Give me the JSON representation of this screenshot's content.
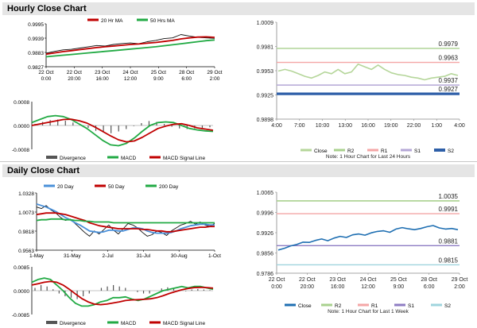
{
  "sections": {
    "hourly_title": "Hourly Close Chart",
    "daily_title": "Daily Close Chart"
  },
  "colors": {
    "ma_short": "#c00000",
    "ma_long": "#22aa44",
    "price": "#111111",
    "divergence": "#555555",
    "macd": "#22aa44",
    "signal": "#c00000",
    "close_hourly": "#b5d69a",
    "close_daily": "#1f6fb2",
    "r2": "#a9d18e",
    "r1": "#f4a6a6",
    "s1_hourly": "#b4a7d6",
    "s2_hourly": "#2e5fa8",
    "s1_daily": "#8e7cc3",
    "s2_daily": "#9fd4de"
  },
  "chart_data": [
    {
      "id": "hourly_price",
      "type": "line",
      "legend": [
        "20 Hr MA",
        "50 Hrs MA"
      ],
      "y_ticks": [
        "0.9995",
        "0.9939",
        "0.9883",
        "0.9827"
      ],
      "ylim": [
        0.9827,
        0.9995
      ],
      "x_ticks": [
        [
          "22 Oct",
          "0:00"
        ],
        [
          "22 Oct",
          "20:00"
        ],
        [
          "23 Oct",
          "16:00"
        ],
        [
          "24 Oct",
          "12:00"
        ],
        [
          "25 Oct",
          "9:00"
        ],
        [
          "28 Oct",
          "6:00"
        ],
        [
          "29 Oct",
          "2:00"
        ]
      ],
      "series": [
        {
          "name": "price",
          "values": [
            0.988,
            0.9887,
            0.9893,
            0.9895,
            0.99,
            0.9905,
            0.991,
            0.9908,
            0.9914,
            0.9918,
            0.992,
            0.9917,
            0.9925,
            0.993,
            0.9937,
            0.994,
            0.9953,
            0.9947,
            0.9942,
            0.994,
            0.9938
          ]
        },
        {
          "name": "20 Hr MA",
          "values": [
            0.9876,
            0.9881,
            0.9886,
            0.989,
            0.9894,
            0.9898,
            0.9902,
            0.9905,
            0.9908,
            0.9911,
            0.9914,
            0.9916,
            0.9919,
            0.9922,
            0.9926,
            0.993,
            0.9936,
            0.994,
            0.9943,
            0.9944,
            0.9942
          ]
        },
        {
          "name": "50 Hrs MA",
          "values": [
            0.9866,
            0.9869,
            0.9872,
            0.9875,
            0.9878,
            0.9881,
            0.9884,
            0.9887,
            0.989,
            0.9893,
            0.9896,
            0.9899,
            0.9902,
            0.9905,
            0.9909,
            0.9913,
            0.9917,
            0.9921,
            0.9925,
            0.9929,
            0.9932
          ]
        }
      ]
    },
    {
      "id": "hourly_macd",
      "type": "line",
      "legend": [
        "Divergence",
        "MACD",
        "MACD Signal Line"
      ],
      "y_ticks": [
        "0.0008",
        "0.0000",
        "-0.0008"
      ],
      "ylim": [
        -0.0008,
        0.0008
      ],
      "series": [
        {
          "name": "Divergence",
          "values": [
            5e-05,
            0.00012,
            0.00018,
            0.0002,
            0.00016,
            0.0001,
            2e-05,
            -8e-05,
            -0.00018,
            -0.00024,
            -0.00026,
            -0.0002,
            -0.00012,
            -2e-05,
            8e-05,
            0.00015,
            0.00012,
            5e-05,
            -4e-05,
            -0.0001,
            -0.00012,
            -0.0001,
            -8e-05,
            -6e-05
          ]
        },
        {
          "name": "MACD",
          "values": [
            0.0001,
            0.0002,
            0.0003,
            0.00033,
            0.0003,
            0.0002,
            5e-05,
            -0.0001,
            -0.0003,
            -0.0005,
            -0.00065,
            -0.00068,
            -0.0006,
            -0.00042,
            -0.0002,
            0.0,
            0.0001,
            0.00012,
            0.0001,
            0.0,
            -0.0001,
            -0.00015,
            -0.00018,
            -0.0002
          ]
        },
        {
          "name": "MACD Signal Line",
          "values": [
            0.0,
            5e-05,
            0.0001,
            0.00015,
            0.0002,
            0.00021,
            0.00016,
            8e-05,
            -5e-05,
            -0.0002,
            -0.00035,
            -0.00048,
            -0.00055,
            -0.00052,
            -0.0004,
            -0.00025,
            -0.0001,
            -2e-05,
            4e-05,
            6e-05,
            0.0,
            -8e-05,
            -0.00012,
            -0.00016
          ]
        }
      ]
    },
    {
      "id": "hourly_levels",
      "type": "line",
      "y_ticks": [
        "1.0009",
        "0.9981",
        "0.9953",
        "0.9925",
        "0.9898"
      ],
      "ylim": [
        0.9898,
        1.0009
      ],
      "x_ticks": [
        "4:00",
        "7:00",
        "10:00",
        "13:00",
        "16:00",
        "19:00",
        "22:00",
        "1:00",
        "4:00"
      ],
      "levels": [
        {
          "name": "R2",
          "value": 0.9979,
          "label": "0.9979"
        },
        {
          "name": "R1",
          "value": 0.9963,
          "label": "0.9963"
        },
        {
          "name": "S1",
          "value": 0.9937,
          "label": "0.9937"
        },
        {
          "name": "S2",
          "value": 0.9927,
          "label": "0.9927"
        }
      ],
      "series": [
        {
          "name": "Close",
          "values": [
            0.9953,
            0.9955,
            0.9953,
            0.995,
            0.9947,
            0.9945,
            0.9948,
            0.9952,
            0.995,
            0.9955,
            0.995,
            0.9952,
            0.9961,
            0.9958,
            0.9955,
            0.996,
            0.9955,
            0.9951,
            0.9949,
            0.9948,
            0.9946,
            0.9945,
            0.9943,
            0.9945,
            0.9946,
            0.9947,
            0.995,
            0.9948
          ]
        }
      ],
      "legend": [
        "Close",
        "R2",
        "R1",
        "S1",
        "S2"
      ],
      "note": "Note: 1 Hour Chart for Last 24 Hours"
    },
    {
      "id": "daily_price",
      "type": "line",
      "legend": [
        "20 Day",
        "50 Day",
        "200 Day"
      ],
      "y_ticks": [
        "1.0328",
        "1.0073",
        "0.9818",
        "0.9563"
      ],
      "ylim": [
        0.9563,
        1.0328
      ],
      "x_ticks": [
        "1-May",
        "31-May",
        "2-Jul",
        "31-Jul",
        "30-Aug",
        "1-Oct"
      ],
      "series": [
        {
          "name": "price",
          "values": [
            1.014,
            1.012,
            1.016,
            1.01,
            1.006,
            1.0,
            0.996,
            0.998,
            0.992,
            0.986,
            0.98,
            0.975,
            0.982,
            0.978,
            0.984,
            0.99,
            0.983,
            0.978,
            0.985,
            0.992,
            0.99,
            0.986,
            0.98,
            0.975,
            0.977,
            0.982,
            0.98,
            0.976,
            0.982,
            0.986,
            0.99,
            0.992,
            0.995,
            0.991,
            0.994,
            0.99,
            0.988,
            0.992
          ]
        },
        {
          "name": "20 Day",
          "values": [
            1.018,
            1.016,
            1.014,
            1.011,
            1.008,
            1.004,
            1.0,
            0.997,
            0.993,
            0.99,
            0.986,
            0.982,
            0.981,
            0.98,
            0.981,
            0.983,
            0.983,
            0.982,
            0.982,
            0.984,
            0.986,
            0.986,
            0.985,
            0.982,
            0.98,
            0.979,
            0.979,
            0.979,
            0.98,
            0.982,
            0.985,
            0.987,
            0.989,
            0.99,
            0.991,
            0.991,
            0.99,
            0.99
          ]
        },
        {
          "name": "50 Day",
          "values": [
            1.004,
            1.005,
            1.006,
            1.006,
            1.006,
            1.005,
            1.004,
            1.002,
            1.0,
            0.998,
            0.996,
            0.993,
            0.991,
            0.989,
            0.988,
            0.987,
            0.986,
            0.985,
            0.985,
            0.985,
            0.985,
            0.985,
            0.984,
            0.984,
            0.983,
            0.982,
            0.982,
            0.981,
            0.981,
            0.982,
            0.983,
            0.984,
            0.985,
            0.986,
            0.987,
            0.987,
            0.988,
            0.988
          ]
        },
        {
          "name": "200 Day",
          "values": [
            0.996,
            0.997,
            0.997,
            0.998,
            0.998,
            0.998,
            0.997,
            0.997,
            0.996,
            0.996,
            0.995,
            0.995,
            0.994,
            0.994,
            0.994,
            0.994,
            0.993,
            0.993,
            0.993,
            0.993,
            0.993,
            0.993,
            0.993,
            0.993,
            0.993,
            0.993,
            0.993,
            0.993,
            0.993,
            0.993,
            0.993,
            0.993,
            0.993,
            0.993,
            0.993,
            0.993,
            0.993,
            0.993
          ]
        }
      ]
    },
    {
      "id": "daily_macd",
      "type": "line",
      "legend": [
        "Divergence",
        "MACD",
        "MACD Signal Line"
      ],
      "y_ticks": [
        "0.0085",
        "0.0000",
        "-0.0085"
      ],
      "ylim": [
        -0.0085,
        0.0085
      ],
      "series": [
        {
          "name": "Divergence",
          "values": [
            0.001,
            0.002,
            0.0015,
            0.0005,
            -0.001,
            -0.002,
            -0.0025,
            -0.003,
            -0.002,
            -0.001,
            0.0,
            0.001,
            0.0015,
            0.002,
            0.0015,
            0.001,
            0.0,
            -0.0005,
            -0.001,
            -0.001,
            0.0,
            0.0008,
            0.0012,
            0.0008,
            0.0003,
            -0.0002,
            0.0004,
            0.0006,
            0.0004,
            0.0002
          ]
        },
        {
          "name": "MACD",
          "values": [
            0.003,
            0.004,
            0.0045,
            0.004,
            0.002,
            0.0,
            -0.0025,
            -0.0045,
            -0.0055,
            -0.0055,
            -0.005,
            -0.004,
            -0.0035,
            -0.0025,
            -0.0025,
            -0.0022,
            -0.003,
            -0.0035,
            -0.003,
            -0.002,
            -0.001,
            0.0,
            0.0005,
            0.001,
            0.0015,
            0.001,
            0.0015,
            0.0015,
            0.001,
            0.0005
          ]
        },
        {
          "name": "MACD Signal Line",
          "values": [
            0.002,
            0.0025,
            0.003,
            0.0033,
            0.003,
            0.002,
            0.0005,
            -0.0012,
            -0.0028,
            -0.004,
            -0.0048,
            -0.005,
            -0.0048,
            -0.0044,
            -0.004,
            -0.0035,
            -0.0033,
            -0.0032,
            -0.0031,
            -0.0029,
            -0.0025,
            -0.0018,
            -0.001,
            -0.0003,
            0.0003,
            0.0008,
            0.0011,
            0.0012,
            0.0011,
            0.0009
          ]
        }
      ]
    },
    {
      "id": "daily_levels",
      "type": "line",
      "y_ticks": [
        "1.0065",
        "0.9996",
        "0.9926",
        "0.9856",
        "0.9786"
      ],
      "ylim": [
        0.9786,
        1.0065
      ],
      "x_ticks": [
        [
          "22 Oct",
          "0:00"
        ],
        [
          "22 Oct",
          "20:00"
        ],
        [
          "23 Oct",
          "16:00"
        ],
        [
          "24 Oct",
          "12:00"
        ],
        [
          "25 Oct",
          "9:00"
        ],
        [
          "28 Oct",
          "6:00"
        ],
        [
          "29 Oct",
          "2:00"
        ]
      ],
      "levels": [
        {
          "name": "R2",
          "value": 1.0035,
          "label": "1.0035"
        },
        {
          "name": "R1",
          "value": 0.9991,
          "label": "0.9991"
        },
        {
          "name": "S1",
          "value": 0.9881,
          "label": "0.9881"
        },
        {
          "name": "S2",
          "value": 0.9815,
          "label": "0.9815"
        }
      ],
      "series": [
        {
          "name": "Close",
          "values": [
            0.9866,
            0.9872,
            0.988,
            0.9885,
            0.9893,
            0.9892,
            0.9899,
            0.9904,
            0.9898,
            0.9907,
            0.9913,
            0.9909,
            0.9918,
            0.9921,
            0.9917,
            0.9925,
            0.993,
            0.9932,
            0.9927,
            0.9938,
            0.9943,
            0.9939,
            0.9936,
            0.994,
            0.9946,
            0.995,
            0.9942,
            0.9938,
            0.994,
            0.9936
          ]
        }
      ],
      "legend": [
        "Close",
        "R2",
        "R1",
        "S1",
        "S2"
      ],
      "note": "Note: 1 Hour Chart for Last 1 Week"
    }
  ]
}
